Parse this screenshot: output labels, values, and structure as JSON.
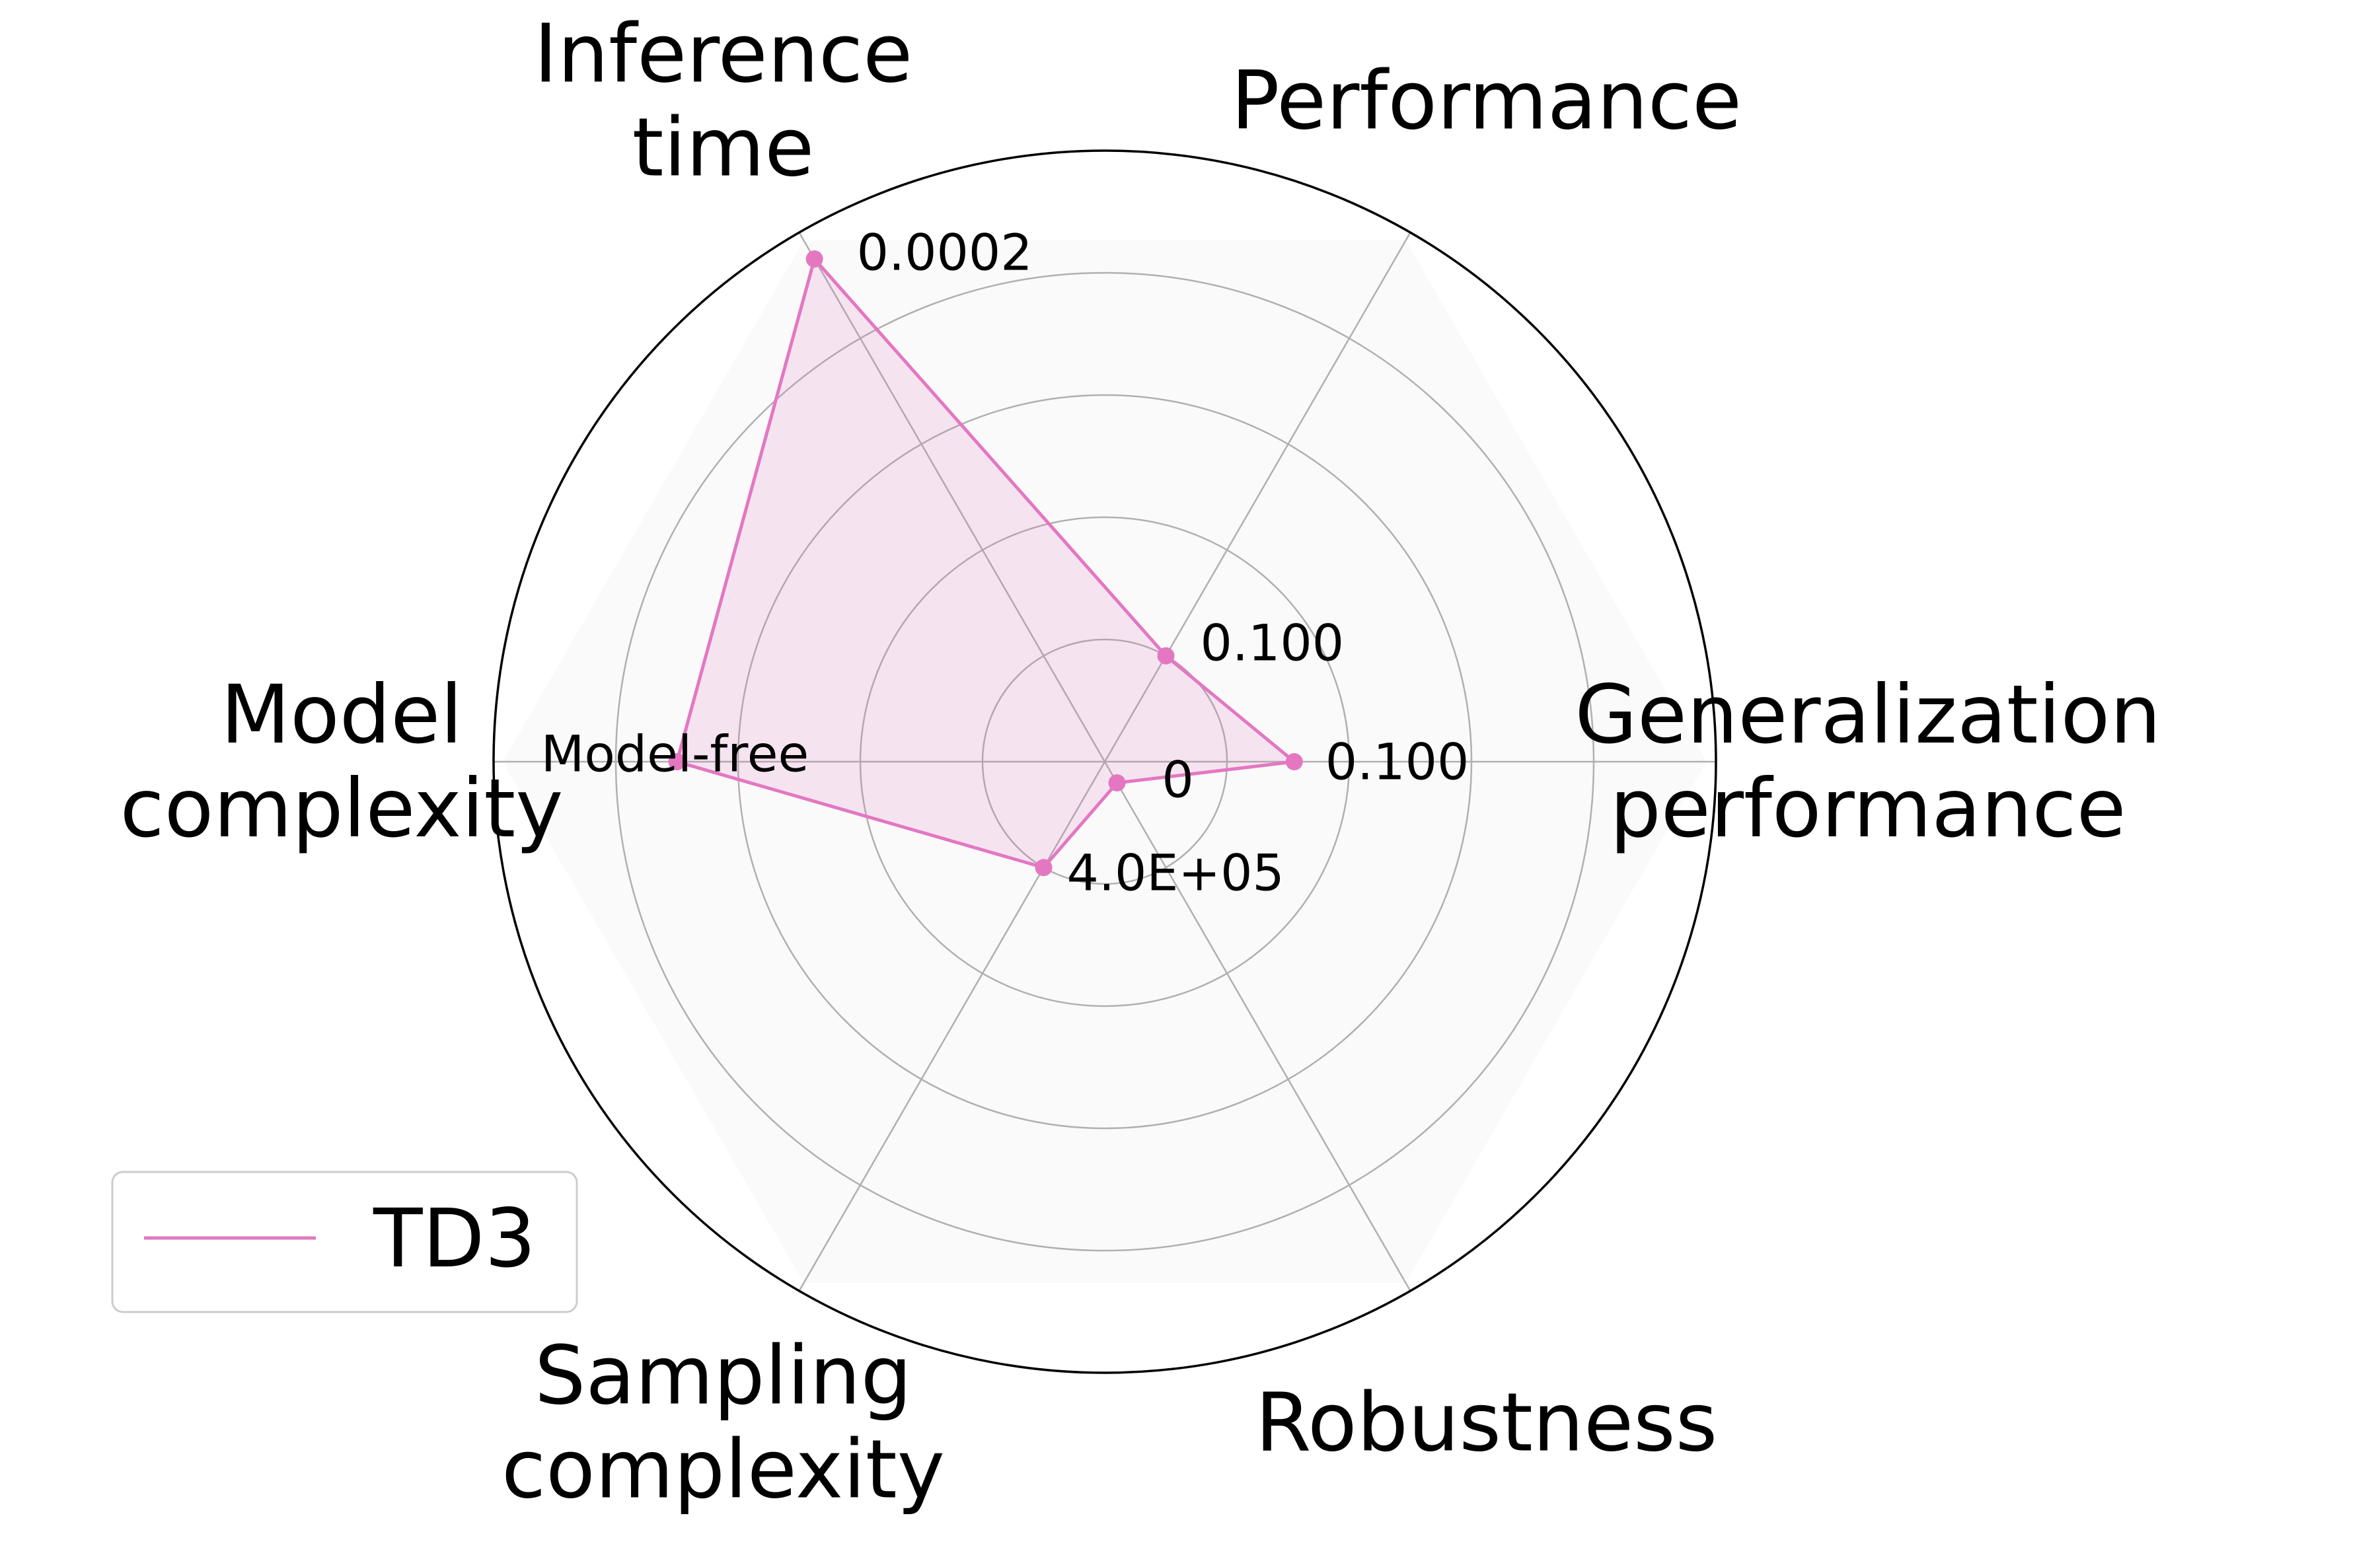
{
  "chart_data": {
    "type": "radar",
    "title": "",
    "axes": [
      {
        "label_lines": [
          "Generalization",
          "performance"
        ],
        "value_label": "0.100"
      },
      {
        "label_lines": [
          "Performance"
        ],
        "value_label": "0.100"
      },
      {
        "label_lines": [
          "Inference",
          "time"
        ],
        "value_label": "0.0002"
      },
      {
        "label_lines": [
          "Model",
          "complexity"
        ],
        "value_label": "Model-free"
      },
      {
        "label_lines": [
          "Sampling",
          "complexity"
        ],
        "value_label": "4.0E+05"
      },
      {
        "label_lines": [
          "Robustness"
        ],
        "value_label": "0"
      }
    ],
    "radial_range": [
      0,
      1
    ],
    "radial_grid": [
      0.2,
      0.4,
      0.6,
      0.8,
      1.0
    ],
    "grid": true,
    "series": [
      {
        "name": "TD3",
        "color": "#e377c2",
        "fill_color": "#e377c2",
        "fill_opacity": 0.16,
        "values": [
          0.31,
          0.2,
          0.95,
          0.7,
          0.2,
          0.04
        ]
      }
    ],
    "legend": {
      "position": "bottom-left"
    },
    "background_hexagon_color": "#fafafa"
  }
}
